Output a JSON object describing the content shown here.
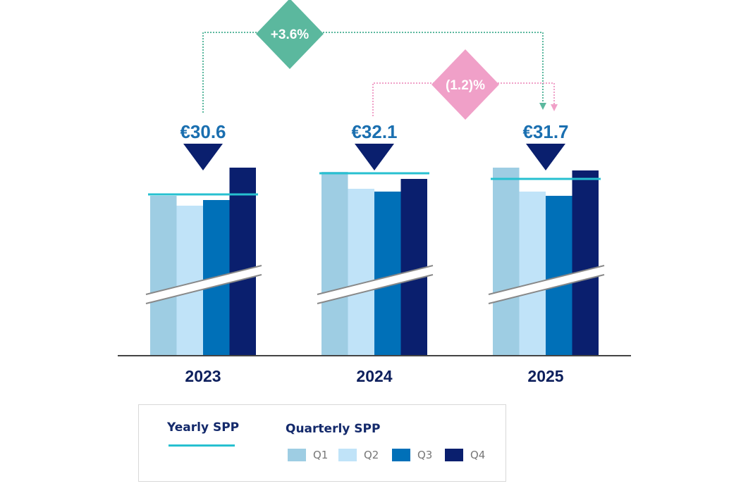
{
  "chart_data": {
    "type": "bar",
    "categories": [
      "2023",
      "2024",
      "2025"
    ],
    "series": [
      {
        "name": "Q1",
        "values": [
          30.5,
          32.2,
          32.5
        ],
        "color": "#9ecde3"
      },
      {
        "name": "Q2",
        "values": [
          29.8,
          31.0,
          30.8
        ],
        "color": "#c0e3f8"
      },
      {
        "name": "Q3",
        "values": [
          30.2,
          30.8,
          30.5
        ],
        "color": "#0070b8"
      },
      {
        "name": "Q4",
        "values": [
          32.5,
          31.7,
          32.3
        ],
        "color": "#0a1f6e"
      }
    ],
    "yearly": {
      "name": "Yearly SPP",
      "values": [
        30.6,
        32.1,
        31.7
      ],
      "labels": [
        "€30.6",
        "€32.1",
        "€31.7"
      ],
      "color": "#27c0d0"
    },
    "axis_break": true,
    "grid": false,
    "changes": [
      {
        "label": "+3.6%",
        "from": "2023",
        "to": "2025",
        "color": "#5bb89e"
      },
      {
        "label": "(1.2)%",
        "from": "2024",
        "to": "2025",
        "color": "#f0a0c8"
      }
    ],
    "legend": {
      "placement": "bottom",
      "yearly_title": "Yearly SPP",
      "quarterly_title": "Quarterly SPP",
      "items": [
        "Q1",
        "Q2",
        "Q3",
        "Q4"
      ]
    }
  }
}
